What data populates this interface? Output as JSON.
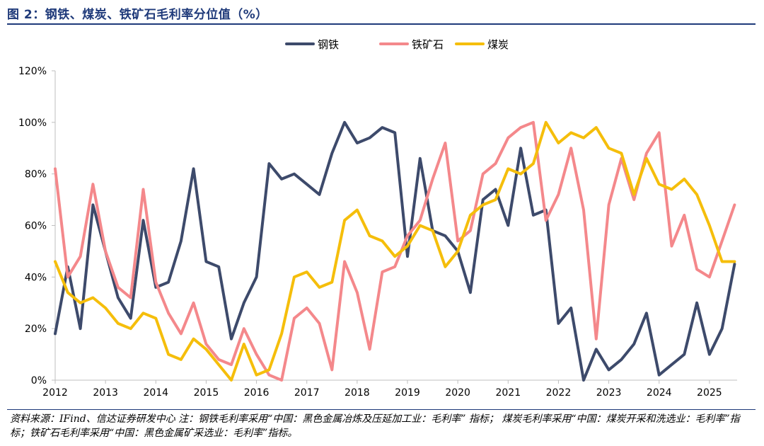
{
  "header": {
    "title": "图 2：钢铁、煤炭、铁矿石毛利率分位值（%）"
  },
  "footer": {
    "source": "资料来源：IFind、信达证券研发中心 注：钢铁毛利率采用“中国：黑色金属冶炼及压延加工业：毛利率” 指标； 煤炭毛利率采用“中国：煤炭开采和洗选业：毛利率”指标；铁矿石毛利率采用“中国：黑色金属矿采选业：毛利率”指标。"
  },
  "chart_data": {
    "type": "line",
    "title": "",
    "xlabel": "",
    "ylabel": "",
    "x_range": [
      2012.0,
      2025.55
    ],
    "ylim": [
      0,
      120
    ],
    "y_ticks": [
      0,
      20,
      40,
      60,
      80,
      100,
      120
    ],
    "y_tick_labels": [
      "0%",
      "20%",
      "40%",
      "60%",
      "80%",
      "100%",
      "120%"
    ],
    "x_ticks": [
      2012,
      2013,
      2014,
      2015,
      2016,
      2017,
      2018,
      2019,
      2020,
      2021,
      2022,
      2023,
      2024,
      2025
    ],
    "x_tick_labels": [
      "2012",
      "2013",
      "2014",
      "2015",
      "2016",
      "2017",
      "2018",
      "2019",
      "2020",
      "2021",
      "2022",
      "2023",
      "2024",
      "2025"
    ],
    "legend_position": "top-center",
    "grid": false,
    "series": [
      {
        "name": "钢铁",
        "color": "#3d4a6b",
        "x": [
          2012.0,
          2012.25,
          2012.5,
          2012.75,
          2013.0,
          2013.25,
          2013.5,
          2013.75,
          2014.0,
          2014.25,
          2014.5,
          2014.75,
          2015.0,
          2015.25,
          2015.5,
          2015.75,
          2016.0,
          2016.25,
          2016.5,
          2016.75,
          2017.0,
          2017.25,
          2017.5,
          2017.75,
          2018.0,
          2018.25,
          2018.5,
          2018.75,
          2019.0,
          2019.25,
          2019.5,
          2019.75,
          2020.0,
          2020.25,
          2020.5,
          2020.75,
          2021.0,
          2021.25,
          2021.5,
          2021.75,
          2022.0,
          2022.25,
          2022.5,
          2022.75,
          2023.0,
          2023.25,
          2023.5,
          2023.75,
          2024.0,
          2024.25,
          2024.5,
          2024.75,
          2025.0,
          2025.25,
          2025.5
        ],
        "values": [
          18,
          44,
          20,
          68,
          50,
          32,
          24,
          62,
          36,
          38,
          54,
          82,
          46,
          44,
          16,
          30,
          40,
          84,
          78,
          80,
          76,
          72,
          88,
          100,
          92,
          94,
          98,
          96,
          48,
          86,
          58,
          56,
          50,
          34,
          70,
          74,
          60,
          90,
          64,
          66,
          22,
          28,
          0,
          12,
          4,
          8,
          14,
          26,
          2,
          6,
          10,
          30,
          10,
          20,
          45
        ]
      },
      {
        "name": "铁矿石",
        "color": "#f4888b",
        "x": [
          2012.0,
          2012.25,
          2012.5,
          2012.75,
          2013.0,
          2013.25,
          2013.5,
          2013.75,
          2014.0,
          2014.25,
          2014.5,
          2014.75,
          2015.0,
          2015.25,
          2015.5,
          2015.75,
          2016.0,
          2016.25,
          2016.5,
          2016.75,
          2017.0,
          2017.25,
          2017.5,
          2017.75,
          2018.0,
          2018.25,
          2018.5,
          2018.75,
          2019.0,
          2019.25,
          2019.5,
          2019.75,
          2020.0,
          2020.25,
          2020.5,
          2020.75,
          2021.0,
          2021.25,
          2021.5,
          2021.75,
          2022.0,
          2022.25,
          2022.5,
          2022.75,
          2023.0,
          2023.25,
          2023.5,
          2023.75,
          2024.0,
          2024.25,
          2024.5,
          2024.75,
          2025.0,
          2025.25,
          2025.5
        ],
        "values": [
          82,
          40,
          48,
          76,
          50,
          36,
          32,
          74,
          38,
          26,
          18,
          30,
          14,
          8,
          6,
          20,
          10,
          2,
          0,
          24,
          28,
          22,
          4,
          46,
          34,
          12,
          42,
          44,
          56,
          62,
          78,
          92,
          54,
          58,
          80,
          84,
          94,
          98,
          100,
          62,
          72,
          90,
          66,
          16,
          68,
          86,
          70,
          88,
          96,
          52,
          64,
          43,
          40,
          54,
          68
        ]
      },
      {
        "name": "煤炭",
        "color": "#f5be0b",
        "x": [
          2012.0,
          2012.25,
          2012.5,
          2012.75,
          2013.0,
          2013.25,
          2013.5,
          2013.75,
          2014.0,
          2014.25,
          2014.5,
          2014.75,
          2015.0,
          2015.25,
          2015.5,
          2015.75,
          2016.0,
          2016.25,
          2016.5,
          2016.75,
          2017.0,
          2017.25,
          2017.5,
          2017.75,
          2018.0,
          2018.25,
          2018.5,
          2018.75,
          2019.0,
          2019.25,
          2019.5,
          2019.75,
          2020.0,
          2020.25,
          2020.5,
          2020.75,
          2021.0,
          2021.25,
          2021.5,
          2021.75,
          2022.0,
          2022.25,
          2022.5,
          2022.75,
          2023.0,
          2023.25,
          2023.5,
          2023.75,
          2024.0,
          2024.25,
          2024.5,
          2024.75,
          2025.0,
          2025.25,
          2025.5
        ],
        "values": [
          46,
          34,
          30,
          32,
          28,
          22,
          20,
          26,
          24,
          10,
          8,
          16,
          12,
          6,
          0,
          14,
          2,
          4,
          18,
          40,
          42,
          36,
          38,
          62,
          66,
          56,
          54,
          48,
          52,
          60,
          58,
          44,
          50,
          64,
          68,
          70,
          82,
          80,
          84,
          100,
          92,
          96,
          94,
          98,
          90,
          88,
          72,
          86,
          76,
          74,
          78,
          72,
          60,
          46,
          46
        ]
      }
    ]
  }
}
